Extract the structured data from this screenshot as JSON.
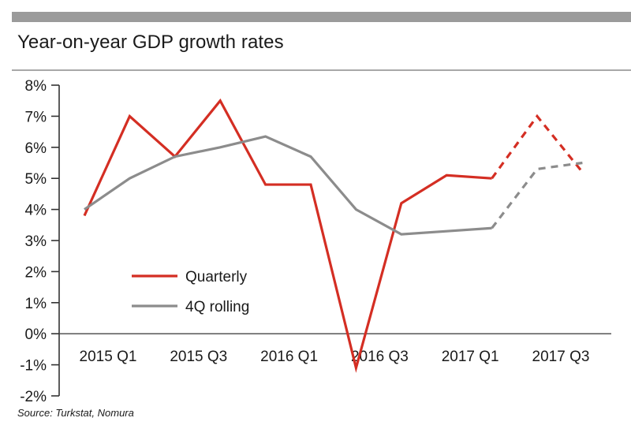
{
  "header": {
    "title": "Year-on-year GDP growth rates"
  },
  "footer": {
    "source": "Source: Turkstat, Nomura"
  },
  "chart_data": {
    "type": "line",
    "title": "Year-on-year GDP growth rates",
    "xlabel": "",
    "ylabel": "",
    "ylim": [
      -2,
      8
    ],
    "yticks": [
      8,
      7,
      6,
      5,
      4,
      3,
      2,
      1,
      0,
      -1,
      -2
    ],
    "ytick_labels": [
      "8%",
      "7%",
      "6%",
      "5%",
      "4%",
      "3%",
      "2%",
      "1%",
      "0%",
      "-1%",
      "-2%"
    ],
    "x": [
      "2015 Q1",
      "2015 Q2",
      "2015 Q3",
      "2015 Q4",
      "2016 Q1",
      "2016 Q2",
      "2016 Q3",
      "2016 Q4",
      "2017 Q1",
      "2017 Q2",
      "2017 Q3",
      "2017 Q4"
    ],
    "xtick_labels": [
      {
        "label": "2015 Q1",
        "index": 0
      },
      {
        "label": "2015 Q3",
        "index": 2
      },
      {
        "label": "2016 Q1",
        "index": 4
      },
      {
        "label": "2016 Q3",
        "index": 6
      },
      {
        "label": "2017 Q1",
        "index": 8
      },
      {
        "label": "2017 Q3",
        "index": 10
      }
    ],
    "grid": false,
    "legend_position": "lower-left",
    "series": [
      {
        "name": "Quarterly",
        "color": "#d42e23",
        "values": [
          3.8,
          7.0,
          5.7,
          7.5,
          4.8,
          4.8,
          -1.1,
          4.2,
          5.1,
          5.0,
          7.0,
          5.2
        ],
        "forecast_from_index": 9
      },
      {
        "name": "4Q rolling",
        "color": "#8c8c8c",
        "values": [
          4.0,
          5.0,
          5.7,
          6.0,
          6.35,
          5.7,
          4.0,
          3.2,
          3.3,
          3.4,
          5.3,
          5.5
        ],
        "forecast_from_index": 9
      }
    ]
  }
}
